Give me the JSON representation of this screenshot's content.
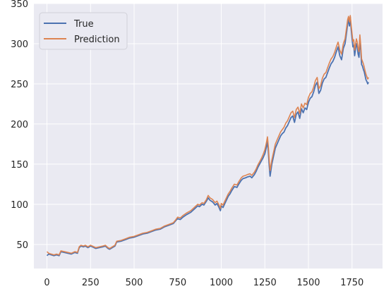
{
  "chart_data": {
    "type": "line",
    "title": "",
    "xlabel": "",
    "ylabel": "",
    "xlim": [
      -75,
      1925
    ],
    "ylim": [
      20,
      350
    ],
    "x_ticks": [
      0,
      250,
      500,
      750,
      1000,
      1250,
      1500,
      1750
    ],
    "y_ticks": [
      50,
      100,
      150,
      200,
      250,
      300,
      350
    ],
    "x_tick_labels": [
      "0",
      "250",
      "500",
      "750",
      "1000",
      "1250",
      "1500",
      "1750"
    ],
    "y_tick_labels": [
      "50",
      "100",
      "150",
      "200",
      "250",
      "300",
      "350"
    ],
    "grid": true,
    "legend_position": "upper-left",
    "x": [
      0,
      10,
      25,
      40,
      55,
      70,
      80,
      100,
      120,
      140,
      160,
      175,
      185,
      195,
      210,
      220,
      235,
      250,
      260,
      280,
      300,
      320,
      335,
      350,
      360,
      375,
      390,
      400,
      425,
      450,
      475,
      500,
      525,
      550,
      575,
      600,
      625,
      650,
      675,
      700,
      725,
      740,
      750,
      765,
      780,
      800,
      825,
      850,
      865,
      875,
      890,
      900,
      915,
      925,
      935,
      950,
      965,
      975,
      985,
      995,
      1000,
      1010,
      1025,
      1040,
      1050,
      1060,
      1075,
      1090,
      1100,
      1115,
      1125,
      1140,
      1150,
      1165,
      1175,
      1190,
      1200,
      1210,
      1220,
      1230,
      1240,
      1250,
      1260,
      1265,
      1270,
      1275,
      1280,
      1290,
      1300,
      1310,
      1320,
      1330,
      1340,
      1350,
      1360,
      1370,
      1380,
      1390,
      1400,
      1410,
      1420,
      1430,
      1440,
      1450,
      1460,
      1470,
      1480,
      1490,
      1500,
      1510,
      1520,
      1530,
      1540,
      1550,
      1560,
      1570,
      1580,
      1590,
      1600,
      1610,
      1620,
      1630,
      1640,
      1650,
      1660,
      1670,
      1680,
      1690,
      1700,
      1710,
      1715,
      1720,
      1725,
      1730,
      1735,
      1740,
      1745,
      1750,
      1755,
      1760,
      1765,
      1770,
      1775,
      1780,
      1785,
      1790,
      1795,
      1800,
      1805,
      1810,
      1815,
      1820,
      1825,
      1830,
      1835,
      1840,
      1845
    ],
    "series": [
      {
        "name": "True",
        "color": "#4c72b0",
        "values": [
          36,
          38,
          37,
          36,
          37,
          36,
          41,
          40,
          39,
          38,
          40,
          39,
          46,
          48,
          47,
          48,
          46,
          48,
          47,
          45,
          46,
          47,
          48,
          45,
          44,
          46,
          48,
          53,
          54,
          56,
          58,
          59,
          61,
          63,
          64,
          66,
          68,
          69,
          72,
          74,
          76,
          80,
          82,
          81,
          84,
          87,
          90,
          95,
          98,
          97,
          100,
          99,
          104,
          108,
          105,
          103,
          99,
          101,
          97,
          92,
          98,
          96,
          103,
          110,
          113,
          117,
          122,
          121,
          125,
          130,
          132,
          133,
          134,
          135,
          133,
          137,
          141,
          146,
          150,
          154,
          158,
          163,
          172,
          180,
          165,
          148,
          135,
          150,
          160,
          170,
          175,
          180,
          185,
          188,
          190,
          195,
          198,
          203,
          208,
          210,
          202,
          212,
          215,
          207,
          219,
          214,
          220,
          218,
          227,
          232,
          234,
          240,
          248,
          252,
          238,
          242,
          251,
          256,
          258,
          264,
          270,
          275,
          278,
          283,
          290,
          296,
          285,
          280,
          294,
          300,
          308,
          316,
          325,
          330,
          322,
          333,
          318,
          307,
          296,
          298,
          285,
          293,
          300,
          296,
          287,
          283,
          306,
          292,
          274,
          272,
          268,
          265,
          260,
          255,
          253,
          250,
          252
        ]
      },
      {
        "name": "Prediction",
        "color": "#dd8452",
        "values": [
          41,
          39,
          38,
          37,
          38,
          37,
          42,
          41,
          40,
          39,
          41,
          40,
          47,
          49,
          48,
          49,
          47,
          49,
          48,
          46,
          47,
          48,
          49,
          46,
          45,
          47,
          49,
          54,
          55,
          57,
          59,
          60,
          62,
          64,
          65,
          67,
          69,
          70,
          73,
          75,
          77,
          81,
          84,
          83,
          86,
          89,
          92,
          97,
          100,
          99,
          102,
          101,
          106,
          111,
          108,
          106,
          102,
          104,
          100,
          95,
          101,
          99,
          106,
          113,
          116,
          120,
          125,
          124,
          128,
          133,
          135,
          136,
          137,
          138,
          136,
          140,
          144,
          149,
          153,
          157,
          162,
          168,
          178,
          184,
          172,
          155,
          142,
          155,
          165,
          175,
          180,
          185,
          190,
          193,
          196,
          201,
          204,
          209,
          214,
          216,
          208,
          218,
          221,
          213,
          225,
          220,
          226,
          224,
          233,
          238,
          240,
          246,
          254,
          258,
          244,
          248,
          257,
          262,
          264,
          270,
          276,
          281,
          284,
          289,
          296,
          302,
          292,
          287,
          300,
          306,
          314,
          322,
          330,
          334,
          327,
          335,
          324,
          313,
          303,
          305,
          292,
          299,
          306,
          302,
          294,
          290,
          311,
          298,
          281,
          278,
          275,
          271,
          266,
          262,
          259,
          256,
          258
        ]
      }
    ]
  }
}
